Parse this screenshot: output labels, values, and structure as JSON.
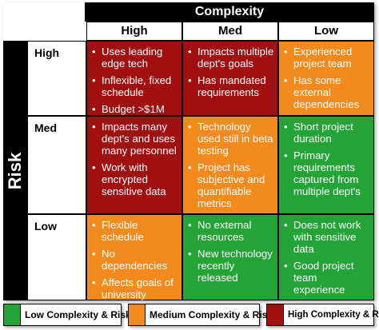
{
  "header": {
    "complexity_title": "Complexity",
    "risk_title": "Risk",
    "columns": [
      "High",
      "Med",
      "Low"
    ],
    "rows": [
      "High",
      "Med",
      "Low"
    ]
  },
  "cells": [
    [
      {
        "color": "#a01010",
        "items": [
          "Uses leading edge tech",
          "Inflexible, fixed schedule",
          "Budget >$1M"
        ]
      },
      {
        "color": "#a01010",
        "items": [
          "Impacts multiple dept's goals",
          "Has mandated requirements"
        ]
      },
      {
        "color": "#f28a1e",
        "items": [
          "Experienced project team",
          "Has some external dependencies"
        ]
      }
    ],
    [
      {
        "color": "#a01010",
        "items": [
          "Impacts many dept's and uses many personnel",
          "Work with encrypted sensitive data"
        ]
      },
      {
        "color": "#f28a1e",
        "items": [
          "Technology used still in beta testing",
          "Project has subjective and quantifiable metrics"
        ]
      },
      {
        "color": "#24a336",
        "items": [
          "Short project duration",
          "Primary requirements captured from multiple dept's"
        ]
      }
    ],
    [
      {
        "color": "#f28a1e",
        "items": [
          "Flexible schedule",
          "No dependencies",
          "Affects goals of university"
        ]
      },
      {
        "color": "#24a336",
        "items": [
          "No external resources",
          "New technology recently released"
        ]
      },
      {
        "color": "#24a336",
        "items": [
          "Does not work with sensitive data",
          "Good project team experience"
        ]
      }
    ]
  ],
  "legend": [
    {
      "label": "Low Complexity & Risk",
      "color": "#24a336"
    },
    {
      "label": "Medium Complexity & Risk",
      "color": "#f28a1e"
    },
    {
      "label": "High Complexity & Risk",
      "color": "#a01010"
    }
  ]
}
